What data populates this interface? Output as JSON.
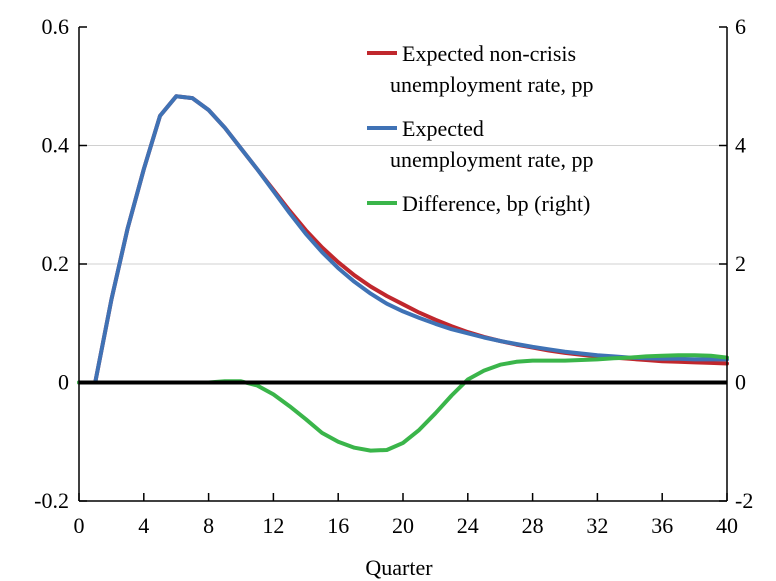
{
  "chart_data": {
    "type": "line",
    "xlabel": "Quarter",
    "ylabel": "",
    "ylabel_right": "",
    "xlim": [
      0,
      40
    ],
    "ylim": [
      -0.2,
      0.6
    ],
    "ylim_right": [
      -2,
      6
    ],
    "x_ticks": [
      0,
      4,
      8,
      12,
      16,
      20,
      24,
      28,
      32,
      36,
      40
    ],
    "y_ticks": [
      -0.2,
      0,
      0.2,
      0.4,
      0.6
    ],
    "y_tick_labels": [
      "-0.2",
      "0",
      "0.2",
      "0.4",
      "0.6"
    ],
    "y_ticks_right": [
      -2,
      0,
      2,
      4,
      6
    ],
    "y_tick_labels_right": [
      "-2",
      "0",
      "2",
      "4",
      "6"
    ],
    "grid": true,
    "legend_position": "top-right",
    "series": [
      {
        "name": "Expected non-crisis unemployment rate, pp",
        "legend_lines": [
          "Expected non-crisis",
          "unemployment rate, pp"
        ],
        "axis": "left",
        "color": "#c0272d",
        "x": [
          0,
          1,
          2,
          3,
          4,
          5,
          6,
          7,
          8,
          9,
          10,
          11,
          12,
          13,
          14,
          15,
          16,
          17,
          18,
          19,
          20,
          21,
          22,
          23,
          24,
          25,
          26,
          27,
          28,
          29,
          30,
          31,
          32,
          33,
          34,
          35,
          36,
          37,
          38,
          39,
          40
        ],
        "y": [
          0,
          0,
          0.14,
          0.26,
          0.36,
          0.45,
          0.483,
          0.48,
          0.46,
          0.43,
          0.395,
          0.36,
          0.325,
          0.29,
          0.257,
          0.228,
          0.203,
          0.181,
          0.162,
          0.146,
          0.132,
          0.118,
          0.106,
          0.095,
          0.085,
          0.077,
          0.07,
          0.064,
          0.059,
          0.054,
          0.05,
          0.047,
          0.044,
          0.042,
          0.04,
          0.038,
          0.036,
          0.035,
          0.034,
          0.033,
          0.032
        ]
      },
      {
        "name": "Expected unemployment rate, pp",
        "legend_lines": [
          "Expected",
          "unemployment rate, pp"
        ],
        "axis": "left",
        "color": "#3f72b5",
        "x": [
          0,
          1,
          2,
          3,
          4,
          5,
          6,
          7,
          8,
          9,
          10,
          11,
          12,
          13,
          14,
          15,
          16,
          17,
          18,
          19,
          20,
          21,
          22,
          23,
          24,
          25,
          26,
          27,
          28,
          29,
          30,
          31,
          32,
          33,
          34,
          35,
          36,
          37,
          38,
          39,
          40
        ],
        "y": [
          0,
          0,
          0.14,
          0.26,
          0.36,
          0.45,
          0.483,
          0.48,
          0.46,
          0.43,
          0.395,
          0.36,
          0.323,
          0.286,
          0.251,
          0.22,
          0.193,
          0.17,
          0.15,
          0.133,
          0.12,
          0.109,
          0.099,
          0.09,
          0.083,
          0.076,
          0.07,
          0.065,
          0.06,
          0.056,
          0.052,
          0.049,
          0.046,
          0.044,
          0.042,
          0.041,
          0.04,
          0.04,
          0.039,
          0.039,
          0.039
        ]
      },
      {
        "name": "Difference, bp (right)",
        "legend_lines": [
          "Difference, bp (right)"
        ],
        "axis": "right",
        "color": "#3ab54a",
        "x": [
          0,
          1,
          2,
          3,
          4,
          5,
          6,
          7,
          8,
          9,
          10,
          11,
          12,
          13,
          14,
          15,
          16,
          17,
          18,
          19,
          20,
          21,
          22,
          23,
          24,
          25,
          26,
          27,
          28,
          29,
          30,
          31,
          32,
          33,
          34,
          35,
          36,
          37,
          38,
          39,
          40
        ],
        "y": [
          0,
          0,
          0,
          0,
          0,
          0,
          0,
          0,
          0,
          0.02,
          0.02,
          -0.05,
          -0.2,
          -0.4,
          -0.62,
          -0.85,
          -1.0,
          -1.1,
          -1.15,
          -1.14,
          -1.02,
          -0.8,
          -0.52,
          -0.22,
          0.05,
          0.2,
          0.3,
          0.35,
          0.37,
          0.37,
          0.37,
          0.38,
          0.39,
          0.41,
          0.42,
          0.44,
          0.45,
          0.46,
          0.46,
          0.45,
          0.42
        ]
      }
    ]
  }
}
